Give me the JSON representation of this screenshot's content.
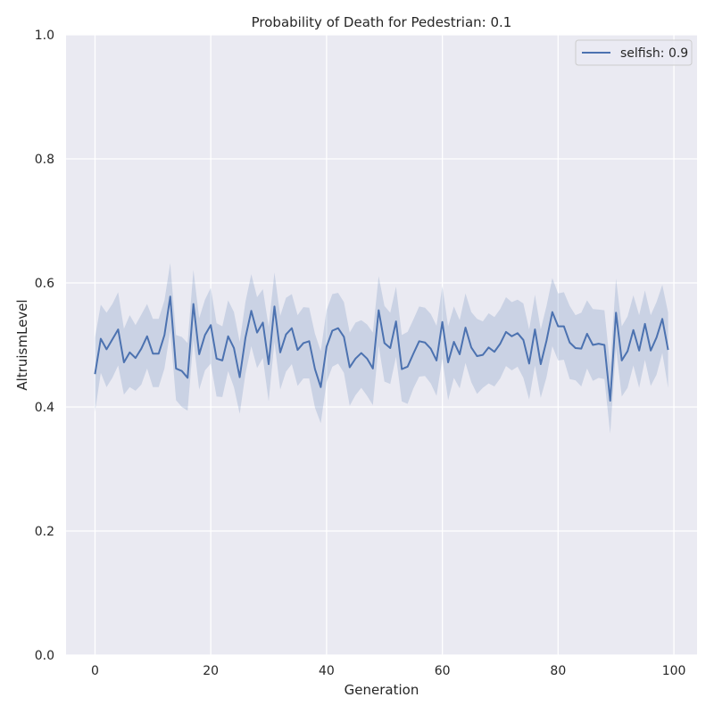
{
  "chart_data": {
    "type": "line",
    "title": "Probability of Death for Pedestrian: 0.1",
    "xlabel": "Generation",
    "ylabel": "AltruismLevel",
    "xlim": [
      -5,
      104
    ],
    "ylim": [
      0,
      1
    ],
    "x_ticks": [
      0,
      20,
      40,
      60,
      80,
      100
    ],
    "y_ticks": [
      0.0,
      0.2,
      0.4,
      0.6,
      0.8,
      1.0
    ],
    "x_tick_labels": [
      "0",
      "20",
      "40",
      "60",
      "80",
      "100"
    ],
    "y_tick_labels": [
      "0.0",
      "0.2",
      "0.4",
      "0.6",
      "0.8",
      "1.0"
    ],
    "grid": true,
    "legend_position": "top-right",
    "colors": {
      "line": "#4c72b0",
      "band": "#4c72b0",
      "background": "#eaeaf2",
      "grid": "#ffffff"
    },
    "series": [
      {
        "name": "selfish: 0.9",
        "x": [
          0,
          1,
          2,
          3,
          4,
          5,
          6,
          7,
          8,
          9,
          10,
          11,
          12,
          13,
          14,
          15,
          16,
          17,
          18,
          19,
          20,
          21,
          22,
          23,
          24,
          25,
          26,
          27,
          28,
          29,
          30,
          31,
          32,
          33,
          34,
          35,
          36,
          37,
          38,
          39,
          40,
          41,
          42,
          43,
          44,
          45,
          46,
          47,
          48,
          49,
          50,
          51,
          52,
          53,
          54,
          55,
          56,
          57,
          58,
          59,
          60,
          61,
          62,
          63,
          64,
          65,
          66,
          67,
          68,
          69,
          70,
          71,
          72,
          73,
          74,
          75,
          76,
          77,
          78,
          79,
          80,
          81,
          82,
          83,
          84,
          85,
          86,
          87,
          88,
          89,
          90,
          91,
          92,
          93,
          94,
          95,
          96,
          97,
          98,
          99
        ],
        "y": [
          0.453,
          0.51,
          0.493,
          0.509,
          0.525,
          0.472,
          0.488,
          0.479,
          0.494,
          0.514,
          0.486,
          0.486,
          0.516,
          0.578,
          0.462,
          0.458,
          0.447,
          0.566,
          0.485,
          0.516,
          0.532,
          0.478,
          0.475,
          0.514,
          0.495,
          0.448,
          0.512,
          0.555,
          0.52,
          0.536,
          0.469,
          0.562,
          0.488,
          0.517,
          0.527,
          0.492,
          0.503,
          0.506,
          0.461,
          0.432,
          0.497,
          0.523,
          0.527,
          0.513,
          0.464,
          0.478,
          0.487,
          0.478,
          0.462,
          0.556,
          0.503,
          0.495,
          0.538,
          0.461,
          0.465,
          0.486,
          0.506,
          0.504,
          0.494,
          0.475,
          0.537,
          0.472,
          0.505,
          0.485,
          0.528,
          0.496,
          0.482,
          0.484,
          0.496,
          0.489,
          0.502,
          0.521,
          0.514,
          0.519,
          0.508,
          0.47,
          0.525,
          0.469,
          0.507,
          0.553,
          0.53,
          0.53,
          0.504,
          0.495,
          0.494,
          0.518,
          0.5,
          0.502,
          0.5,
          0.41,
          0.552,
          0.475,
          0.49,
          0.524,
          0.491,
          0.534,
          0.491,
          0.512,
          0.542,
          0.492
        ],
        "ci_low": [
          0.392,
          0.455,
          0.432,
          0.447,
          0.467,
          0.42,
          0.432,
          0.426,
          0.436,
          0.462,
          0.432,
          0.432,
          0.462,
          0.523,
          0.411,
          0.4,
          0.394,
          0.508,
          0.428,
          0.459,
          0.47,
          0.417,
          0.416,
          0.458,
          0.432,
          0.389,
          0.454,
          0.498,
          0.463,
          0.479,
          0.409,
          0.505,
          0.428,
          0.457,
          0.469,
          0.434,
          0.446,
          0.446,
          0.399,
          0.374,
          0.44,
          0.465,
          0.47,
          0.455,
          0.402,
          0.419,
          0.431,
          0.418,
          0.403,
          0.499,
          0.441,
          0.437,
          0.481,
          0.409,
          0.405,
          0.43,
          0.449,
          0.45,
          0.438,
          0.418,
          0.478,
          0.411,
          0.447,
          0.43,
          0.471,
          0.44,
          0.421,
          0.431,
          0.438,
          0.433,
          0.446,
          0.466,
          0.459,
          0.465,
          0.447,
          0.412,
          0.467,
          0.415,
          0.448,
          0.498,
          0.475,
          0.476,
          0.445,
          0.443,
          0.433,
          0.462,
          0.442,
          0.447,
          0.445,
          0.357,
          0.495,
          0.417,
          0.431,
          0.467,
          0.431,
          0.476,
          0.434,
          0.452,
          0.487,
          0.431
        ],
        "ci_high": [
          0.512,
          0.565,
          0.552,
          0.566,
          0.585,
          0.526,
          0.548,
          0.532,
          0.549,
          0.566,
          0.542,
          0.542,
          0.572,
          0.632,
          0.516,
          0.513,
          0.503,
          0.621,
          0.543,
          0.573,
          0.592,
          0.535,
          0.53,
          0.572,
          0.553,
          0.505,
          0.57,
          0.614,
          0.577,
          0.59,
          0.529,
          0.617,
          0.547,
          0.576,
          0.582,
          0.548,
          0.561,
          0.56,
          0.518,
          0.49,
          0.556,
          0.582,
          0.584,
          0.569,
          0.52,
          0.536,
          0.54,
          0.533,
          0.52,
          0.611,
          0.563,
          0.552,
          0.594,
          0.516,
          0.521,
          0.541,
          0.562,
          0.56,
          0.55,
          0.531,
          0.595,
          0.53,
          0.562,
          0.54,
          0.583,
          0.553,
          0.542,
          0.538,
          0.551,
          0.545,
          0.558,
          0.577,
          0.569,
          0.573,
          0.567,
          0.525,
          0.581,
          0.525,
          0.563,
          0.608,
          0.583,
          0.585,
          0.563,
          0.548,
          0.552,
          0.572,
          0.558,
          0.557,
          0.556,
          0.465,
          0.607,
          0.53,
          0.546,
          0.58,
          0.548,
          0.588,
          0.548,
          0.569,
          0.597,
          0.552
        ]
      }
    ]
  }
}
